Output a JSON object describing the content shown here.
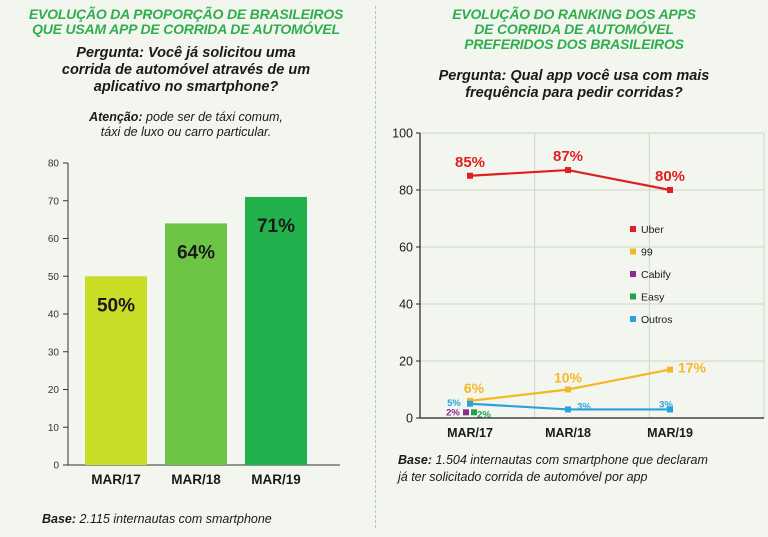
{
  "left": {
    "title_line1": "EVOLUÇÃO DA PROPORÇÃO DE BRASILEIROS",
    "title_line2": "QUE USAM APP DE CORRIDA DE AUTOMÓVEL",
    "question_line1": "Pergunta: Você já solicitou uma",
    "question_line2": "corrida de automóvel através de um",
    "question_line3": "aplicativo no smartphone?",
    "note_label": "Atenção:",
    "note_line1": " pode ser de táxi comum,",
    "note_line2": "táxi de luxo ou carro particular.",
    "base_label": "Base:",
    "base_text": " 2.115 internautas com smartphone"
  },
  "right": {
    "title_line1": "EVOLUÇÃO DO RANKING DOS APPS",
    "title_line2": "DE CORRIDA DE AUTOMÓVEL",
    "title_line3": "PREFERIDOS DOS BRASILEIROS",
    "question_line1": "Pergunta: Qual app você usa com mais",
    "question_line2": "frequência para pedir corridas?",
    "base_label": "Base:",
    "base_line1": " 1.504 internautas com smartphone que declaram",
    "base_line2": "já ter solicitado corrida de automóvel por app"
  },
  "chart_data": [
    {
      "type": "bar",
      "categories": [
        "MAR/17",
        "MAR/18",
        "MAR/19"
      ],
      "values": [
        50,
        64,
        71
      ],
      "labels": [
        "50%",
        "64%",
        "71%"
      ],
      "colors": [
        "#c9dc26",
        "#6cc544",
        "#22b14c"
      ],
      "yticks": [
        0,
        10,
        20,
        30,
        40,
        50,
        60,
        70,
        80
      ],
      "ylim": [
        0,
        80
      ],
      "grid": false
    },
    {
      "type": "line",
      "categories": [
        "MAR/17",
        "MAR/18",
        "MAR/19"
      ],
      "yticks": [
        0,
        20,
        40,
        60,
        80,
        100
      ],
      "ylim": [
        0,
        100
      ],
      "grid": true,
      "legend_position": "right",
      "series": [
        {
          "name": "Uber",
          "color": "#e02020",
          "values": [
            85,
            87,
            80
          ],
          "labels": [
            "85%",
            "87%",
            "80%"
          ]
        },
        {
          "name": "99",
          "color": "#f5b725",
          "values": [
            6,
            10,
            17
          ],
          "labels": [
            "6%",
            "10%",
            "17%"
          ]
        },
        {
          "name": "Cabify",
          "color": "#8e2a8f",
          "values": [
            2,
            null,
            null
          ],
          "labels": [
            "2%",
            "",
            ""
          ]
        },
        {
          "name": "Easy",
          "color": "#22a04b",
          "values": [
            2,
            null,
            null
          ],
          "labels": [
            "2%",
            "",
            ""
          ]
        },
        {
          "name": "Outros",
          "color": "#2aa3dc",
          "values": [
            5,
            3,
            3
          ],
          "labels": [
            "5%",
            "3%",
            "3%"
          ]
        }
      ]
    }
  ]
}
